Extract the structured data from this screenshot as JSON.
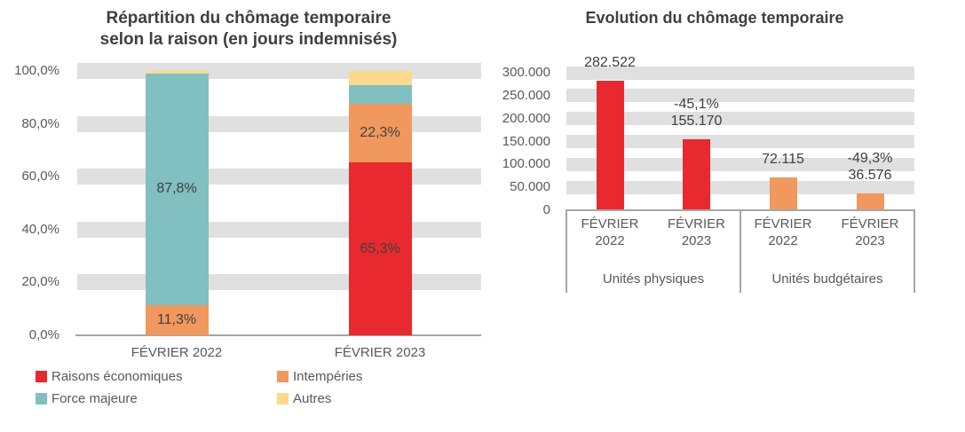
{
  "chart_data": [
    {
      "id": "repartition",
      "type": "bar",
      "subtype": "stacked-percent",
      "title": "Répartition du chômage temporaire\nselon la raison (en jours indemnisés)",
      "categories": [
        "FÉVRIER 2022",
        "FÉVRIER 2023"
      ],
      "series": [
        {
          "name": "Raisons économiques",
          "color": "#E8292F",
          "values": [
            0,
            65.3
          ],
          "labels": [
            "",
            "65,3%"
          ]
        },
        {
          "name": "Intempéries",
          "color": "#F0985E",
          "values": [
            11.3,
            22.3
          ],
          "labels": [
            "11,3%",
            "22,3%"
          ]
        },
        {
          "name": "Force majeure",
          "color": "#81BFC0",
          "values": [
            87.8,
            7.1
          ],
          "labels": [
            "87,8%",
            ""
          ]
        },
        {
          "name": "Autres",
          "color": "#FCD98C",
          "values": [
            0.9,
            5.3
          ],
          "labels": [
            "",
            ""
          ]
        }
      ],
      "ylabel": "",
      "xlabel": "",
      "ylim": [
        0,
        100
      ],
      "y_ticks": [
        "100,0%",
        "80,0%",
        "60,0%",
        "40,0%",
        "20,0%",
        "0,0%"
      ],
      "grid": "thick-gray-bands",
      "legend_position": "bottom-two-columns"
    },
    {
      "id": "evolution",
      "type": "bar",
      "subtype": "grouped",
      "title": "Evolution du chômage temporaire",
      "ylim": [
        0,
        300000
      ],
      "y_ticks": [
        "300.000",
        "250.000",
        "200.000",
        "150.000",
        "100.000",
        "50.000",
        "0"
      ],
      "grid": "thick-gray-bands",
      "groups": [
        {
          "label": "Unités physiques",
          "bars": [
            {
              "category": "FÉVRIER\n2022",
              "value": 282522,
              "display": "282.522",
              "change": "",
              "color": "#E8292F"
            },
            {
              "category": "FÉVRIER\n2023",
              "value": 155170,
              "display": "155.170",
              "change": "-45,1%",
              "color": "#E8292F"
            }
          ]
        },
        {
          "label": "Unités budgétaires",
          "bars": [
            {
              "category": "FÉVRIER\n2022",
              "value": 72115,
              "display": "72.115",
              "change": "",
              "color": "#F0985E"
            },
            {
              "category": "FÉVRIER\n2023",
              "value": 36576,
              "display": "36.576",
              "change": "-49,3%",
              "color": "#F0985E"
            }
          ]
        }
      ]
    }
  ],
  "colors": {
    "raisons_economiques": "#E8292F",
    "intemperies": "#F0985E",
    "force_majeure": "#81BFC0",
    "autres": "#FCD98C",
    "grid_band": "#E0E0E0",
    "axis_line": "#A6A6A6",
    "title_text": "#3F3F3F",
    "label_text": "#595959"
  }
}
